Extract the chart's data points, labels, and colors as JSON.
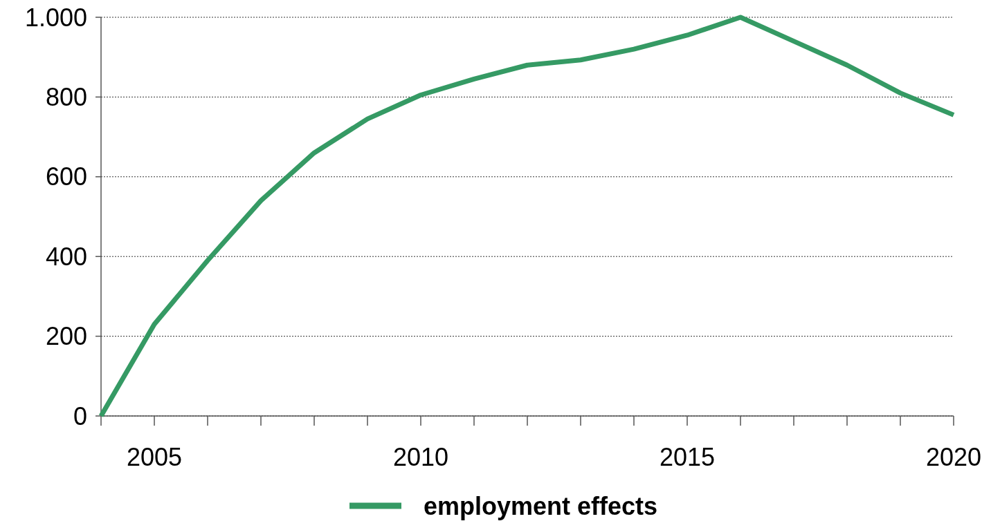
{
  "chart_data": {
    "type": "line",
    "x": [
      2004,
      2005,
      2006,
      2007,
      2008,
      2009,
      2010,
      2011,
      2012,
      2013,
      2014,
      2015,
      2016,
      2017,
      2018,
      2019,
      2020
    ],
    "series": [
      {
        "name": "employment effects",
        "color": "#359a64",
        "values": [
          0,
          230,
          390,
          540,
          660,
          745,
          805,
          845,
          880,
          893,
          920,
          955,
          1000,
          940,
          880,
          810,
          755
        ]
      }
    ],
    "xlim": [
      2004,
      2020
    ],
    "xticks": [
      {
        "value": 2004,
        "label": null
      },
      2005,
      {
        "value": 2006,
        "label": null
      },
      {
        "value": 2007,
        "label": null
      },
      {
        "value": 2008,
        "label": null
      },
      {
        "value": 2009,
        "label": null
      },
      2010,
      {
        "value": 2011,
        "label": null
      },
      {
        "value": 2012,
        "label": null
      },
      {
        "value": 2013,
        "label": null
      },
      {
        "value": 2014,
        "label": null
      },
      2015,
      {
        "value": 2016,
        "label": null
      },
      {
        "value": 2017,
        "label": null
      },
      {
        "value": 2018,
        "label": null
      },
      {
        "value": 2019,
        "label": null
      },
      2020
    ],
    "ylim": [
      0,
      1000
    ],
    "yticks": [
      0,
      200,
      400,
      600,
      800,
      {
        "value": 1000,
        "label": "1.000"
      }
    ],
    "grid": "y",
    "legend": "bottom",
    "marker": "none",
    "line_style": "solid"
  }
}
